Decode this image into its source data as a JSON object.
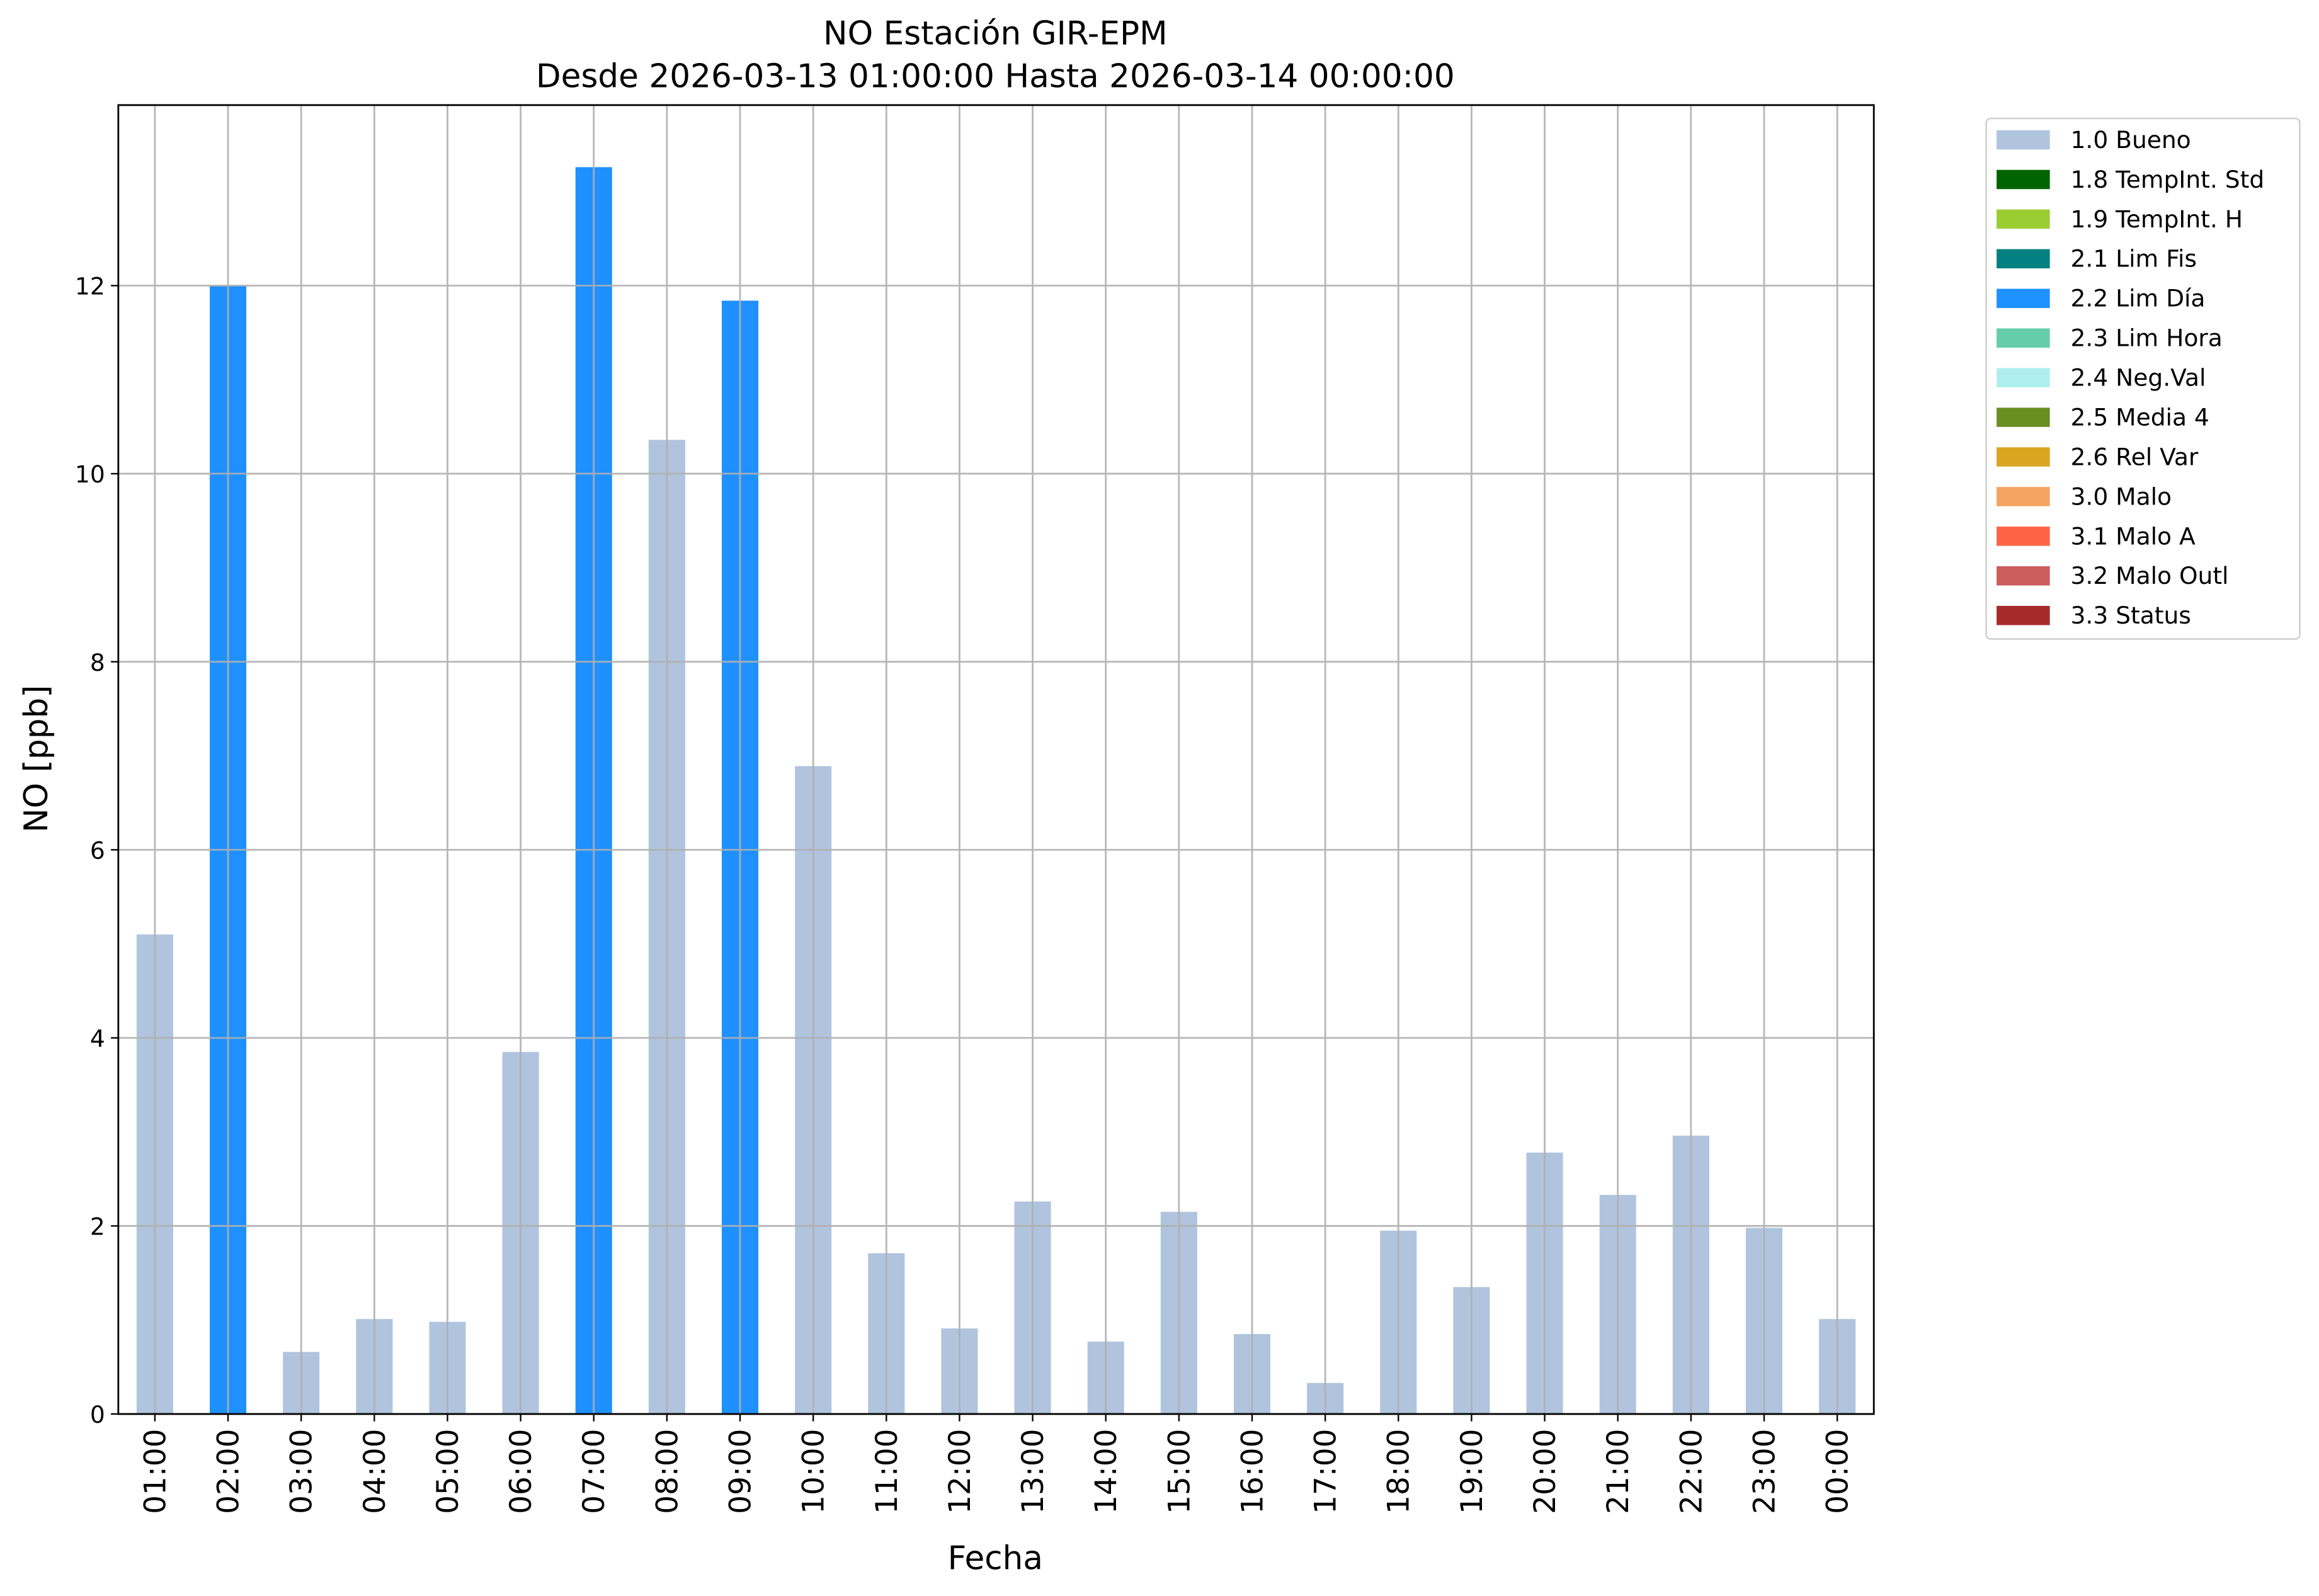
{
  "chart_data": {
    "type": "bar",
    "stacked": true,
    "title": "NO Estación GIR-EPM",
    "subtitle": "Desde 2026-03-13 01:00:00 Hasta 2026-03-14 00:00:00",
    "x_label": "Fecha",
    "y_label": "NO [ppb]",
    "categories": [
      "01:00",
      "02:00",
      "03:00",
      "04:00",
      "05:00",
      "06:00",
      "07:00",
      "08:00",
      "09:00",
      "10:00",
      "11:00",
      "12:00",
      "13:00",
      "14:00",
      "15:00",
      "16:00",
      "17:00",
      "18:00",
      "19:00",
      "20:00",
      "21:00",
      "22:00",
      "23:00",
      "00:00"
    ],
    "series": [
      {
        "name": "1.0 Bueno",
        "color": "#b0c4de",
        "values": [
          5.1,
          null,
          0.66,
          1.01,
          0.98,
          3.85,
          null,
          10.36,
          null,
          6.89,
          1.71,
          0.91,
          2.26,
          0.77,
          2.15,
          0.85,
          0.33,
          1.95,
          1.35,
          2.78,
          2.33,
          2.96,
          1.98,
          1.01
        ]
      },
      {
        "name": "1.8 TempInt. Std",
        "color": "#006400",
        "values": [
          null,
          null,
          null,
          null,
          null,
          null,
          null,
          null,
          null,
          null,
          null,
          null,
          null,
          null,
          null,
          null,
          null,
          null,
          null,
          null,
          null,
          null,
          null,
          null
        ]
      },
      {
        "name": "1.9 TempInt. H",
        "color": "#9acd32",
        "values": [
          null,
          null,
          null,
          null,
          null,
          null,
          null,
          null,
          null,
          null,
          null,
          null,
          null,
          null,
          null,
          null,
          null,
          null,
          null,
          null,
          null,
          null,
          null,
          null
        ]
      },
      {
        "name": "2.1 Lim Fis",
        "color": "#008080",
        "values": [
          null,
          null,
          null,
          null,
          null,
          null,
          null,
          null,
          null,
          null,
          null,
          null,
          null,
          null,
          null,
          null,
          null,
          null,
          null,
          null,
          null,
          null,
          null,
          null
        ]
      },
      {
        "name": "2.2 Lim Día",
        "color": "#1e90ff",
        "values": [
          null,
          12.0,
          null,
          null,
          null,
          null,
          13.26,
          null,
          11.84,
          null,
          null,
          null,
          null,
          null,
          null,
          null,
          null,
          null,
          null,
          null,
          null,
          null,
          null,
          null
        ]
      },
      {
        "name": "2.3 Lim Hora",
        "color": "#66cdaa",
        "values": [
          null,
          null,
          null,
          null,
          null,
          null,
          null,
          null,
          null,
          null,
          null,
          null,
          null,
          null,
          null,
          null,
          null,
          null,
          null,
          null,
          null,
          null,
          null,
          null
        ]
      },
      {
        "name": "2.4 Neg.Val",
        "color": "#afeeee",
        "values": [
          null,
          null,
          null,
          null,
          null,
          null,
          null,
          null,
          null,
          null,
          null,
          null,
          null,
          null,
          null,
          null,
          null,
          null,
          null,
          null,
          null,
          null,
          null,
          null
        ]
      },
      {
        "name": "2.5 Media 4",
        "color": "#6b8e23",
        "values": [
          null,
          null,
          null,
          null,
          null,
          null,
          null,
          null,
          null,
          null,
          null,
          null,
          null,
          null,
          null,
          null,
          null,
          null,
          null,
          null,
          null,
          null,
          null,
          null
        ]
      },
      {
        "name": "2.6 Rel Var",
        "color": "#daa520",
        "values": [
          null,
          null,
          null,
          null,
          null,
          null,
          null,
          null,
          null,
          null,
          null,
          null,
          null,
          null,
          null,
          null,
          null,
          null,
          null,
          null,
          null,
          null,
          null,
          null
        ]
      },
      {
        "name": "3.0 Malo",
        "color": "#f4a460",
        "values": [
          null,
          null,
          null,
          null,
          null,
          null,
          null,
          null,
          null,
          null,
          null,
          null,
          null,
          null,
          null,
          null,
          null,
          null,
          null,
          null,
          null,
          null,
          null,
          null
        ]
      },
      {
        "name": "3.1 Malo A",
        "color": "#ff6347",
        "values": [
          null,
          null,
          null,
          null,
          null,
          null,
          null,
          null,
          null,
          null,
          null,
          null,
          null,
          null,
          null,
          null,
          null,
          null,
          null,
          null,
          null,
          null,
          null,
          null
        ]
      },
      {
        "name": "3.2 Malo Outl",
        "color": "#cd5c5c",
        "values": [
          null,
          null,
          null,
          null,
          null,
          null,
          null,
          null,
          null,
          null,
          null,
          null,
          null,
          null,
          null,
          null,
          null,
          null,
          null,
          null,
          null,
          null,
          null,
          null
        ]
      },
      {
        "name": "3.3 Status",
        "color": "#a52a2a",
        "values": [
          null,
          null,
          null,
          null,
          null,
          null,
          null,
          null,
          null,
          null,
          null,
          null,
          null,
          null,
          null,
          null,
          null,
          null,
          null,
          null,
          null,
          null,
          null,
          null
        ]
      }
    ],
    "ylim": [
      0,
      13.92
    ],
    "yticks": [
      0,
      2,
      4,
      6,
      8,
      10,
      12
    ],
    "grid": true,
    "legend": "outside-upper-right"
  }
}
